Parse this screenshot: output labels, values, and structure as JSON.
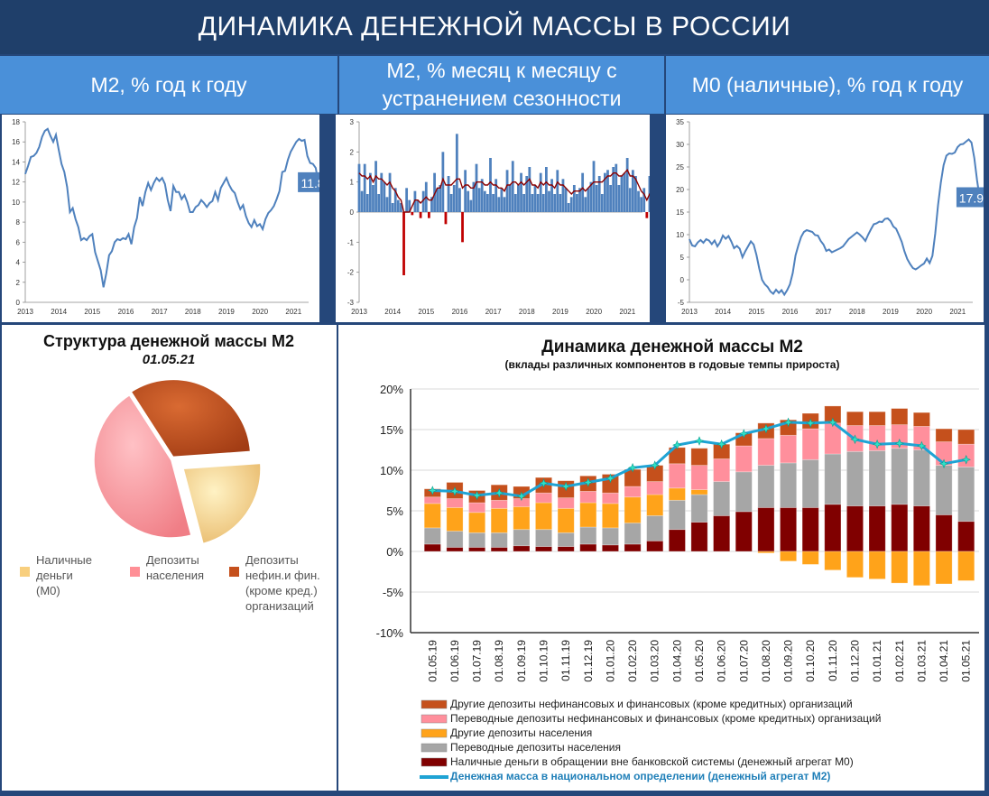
{
  "page": {
    "title": "ДИНАМИКА ДЕНЕЖНОЙ МАССЫ В РОССИИ"
  },
  "headers": {
    "h1": "М2, % год к году",
    "h2_line1": "М2, % месяц к месяцу с",
    "h2_line2": "устранением сезонности",
    "h3": "М0 (наличные), % год к году"
  },
  "colors": {
    "line_blue": "#4f81bd",
    "bar_blue": "#4f81bd",
    "bar_red": "#c00000",
    "ma_red": "#8b0000",
    "m2_line": "#1fa3d4",
    "m2_marker": "#2fe0c8",
    "cash": "#800000",
    "trans_house": "#a6a6a6",
    "other_house": "#ffa31a",
    "trans_corp": "#ff8f9c",
    "other_corp": "#c5501c"
  },
  "chart_data": [
    {
      "type": "line",
      "title": "М2, % год к году",
      "x_ticks": [
        "2013",
        "2014",
        "2015",
        "2016",
        "2017",
        "2018",
        "2019",
        "2020",
        "2021"
      ],
      "y_ticks": [
        "0",
        "2",
        "4",
        "6",
        "8",
        "10",
        "12",
        "14",
        "16",
        "18"
      ],
      "ylim": [
        0,
        18
      ],
      "x_start": 2013.0,
      "x_step": 0.0833,
      "values": [
        12.8,
        13.6,
        14.5,
        14.6,
        14.9,
        15.5,
        16.5,
        17.1,
        17.3,
        16.6,
        16.0,
        16.7,
        15.2,
        13.8,
        13.0,
        11.5,
        9.0,
        9.4,
        8.3,
        7.5,
        6.2,
        6.4,
        6.2,
        6.6,
        6.8,
        5.0,
        4.1,
        3.2,
        1.5,
        2.9,
        4.7,
        5.1,
        6.0,
        6.3,
        6.2,
        6.4,
        6.3,
        6.8,
        5.8,
        7.5,
        8.4,
        10.5,
        9.6,
        11.0,
        11.9,
        11.2,
        11.9,
        12.4,
        12.1,
        12.4,
        11.8,
        10.2,
        9.1,
        11.6,
        11.0,
        11.0,
        10.3,
        10.7,
        10.0,
        9.0,
        9.0,
        9.5,
        9.7,
        10.2,
        9.9,
        9.5,
        9.9,
        10.1,
        11.0,
        10.2,
        11.4,
        11.9,
        12.4,
        11.7,
        11.2,
        10.9,
        10.0,
        9.3,
        9.7,
        8.6,
        7.9,
        7.5,
        8.2,
        7.6,
        7.8,
        7.3,
        8.3,
        8.9,
        9.2,
        9.6,
        10.3,
        11.1,
        13.0,
        13.1,
        14.2,
        15.0,
        15.5,
        16.0,
        16.3,
        16.1,
        16.2,
        14.6,
        13.9,
        13.8,
        13.4,
        11.8,
        11.8
      ],
      "last_label": "11.8"
    },
    {
      "type": "bar",
      "title": "М2, % месяц к месяцу с устранением сезонности",
      "x_ticks": [
        "2013",
        "2014",
        "2015",
        "2016",
        "2017",
        "2018",
        "2019",
        "2020",
        "2021"
      ],
      "y_ticks": [
        "-3",
        "-2",
        "-1",
        "0",
        "1",
        "2",
        "3"
      ],
      "ylim": [
        -3,
        3
      ],
      "x_start": 2013.0,
      "x_step": 0.0833,
      "values": [
        1.6,
        0.7,
        1.6,
        0.6,
        1.3,
        0.9,
        1.7,
        0.6,
        1.3,
        1.0,
        0.5,
        1.3,
        0.3,
        0.8,
        0.4,
        0.3,
        -2.1,
        0.8,
        0.4,
        -0.1,
        0.7,
        0.4,
        -0.2,
        0.7,
        1.0,
        -0.2,
        0.5,
        1.3,
        0.8,
        0.9,
        2.0,
        -0.4,
        1.2,
        0.6,
        0.9,
        2.6,
        0.8,
        -1.0,
        1.4,
        0.7,
        0.4,
        1.0,
        1.6,
        0.8,
        1.1,
        0.7,
        0.6,
        1.8,
        0.6,
        1.1,
        0.5,
        0.8,
        0.5,
        1.4,
        0.9,
        1.7,
        0.6,
        0.9,
        1.3,
        0.6,
        1.2,
        1.5,
        0.6,
        0.9,
        0.6,
        1.3,
        0.6,
        1.5,
        0.7,
        1.1,
        0.6,
        1.4,
        0.6,
        1.1,
        0.8,
        0.3,
        0.5,
        0.9,
        0.6,
        0.8,
        1.3,
        0.5,
        0.8,
        1.0,
        1.7,
        0.9,
        1.2,
        0.6,
        1.3,
        1.4,
        0.9,
        1.5,
        1.6,
        0.9,
        1.2,
        1.3,
        1.8,
        0.8,
        1.4,
        1.2,
        0.7,
        0.5,
        0.8,
        -0.2,
        1.2,
        0.5,
        1.2
      ],
      "ma": [
        1.3,
        1.2,
        1.2,
        1.1,
        1.2,
        1.0,
        1.2,
        1.1,
        1.1,
        1.0,
        0.9,
        1.0,
        0.8,
        0.7,
        0.5,
        0.4,
        0.0,
        0.0,
        0.0,
        0.2,
        0.4,
        0.4,
        0.3,
        0.4,
        0.5,
        0.4,
        0.4,
        0.6,
        0.8,
        0.8,
        1.1,
        0.9,
        0.9,
        0.9,
        1.0,
        1.1,
        1.1,
        0.8,
        0.9,
        0.9,
        0.8,
        0.8,
        1.0,
        1.0,
        1.0,
        0.9,
        0.9,
        1.0,
        0.9,
        0.9,
        0.8,
        0.8,
        0.7,
        0.9,
        0.9,
        1.0,
        1.0,
        0.9,
        1.0,
        0.9,
        1.0,
        1.1,
        0.9,
        0.9,
        0.8,
        1.0,
        0.9,
        1.0,
        0.9,
        0.9,
        0.8,
        1.0,
        0.9,
        0.9,
        0.8,
        0.7,
        0.6,
        0.7,
        0.7,
        0.7,
        0.8,
        0.7,
        0.8,
        0.9,
        1.0,
        1.0,
        1.0,
        1.0,
        1.1,
        1.2,
        1.2,
        1.3,
        1.3,
        1.2,
        1.2,
        1.3,
        1.4,
        1.2,
        1.2,
        1.1,
        0.9,
        0.7,
        0.6,
        0.4,
        0.6,
        0.7,
        0.8
      ]
    },
    {
      "type": "line",
      "title": "М0 (наличные), % год к году",
      "x_ticks": [
        "2013",
        "2014",
        "2015",
        "2016",
        "2017",
        "2018",
        "2019",
        "2020",
        "2021"
      ],
      "y_ticks": [
        "-5",
        "0",
        "5",
        "10",
        "15",
        "20",
        "25",
        "30",
        "35"
      ],
      "ylim": [
        -5,
        35
      ],
      "x_start": 2013.0,
      "x_step": 0.0833,
      "values": [
        9.0,
        7.6,
        7.4,
        8.3,
        8.8,
        8.2,
        9.0,
        8.7,
        7.9,
        8.7,
        7.4,
        8.3,
        9.8,
        9.1,
        9.7,
        8.5,
        7.0,
        7.5,
        6.9,
        5.0,
        6.3,
        7.4,
        8.5,
        7.8,
        5.5,
        2.5,
        0.0,
        -1.0,
        -1.6,
        -2.6,
        -3.1,
        -2.2,
        -2.9,
        -2.3,
        -3.3,
        -2.3,
        -1.0,
        1.5,
        5.4,
        7.6,
        9.5,
        10.6,
        11.0,
        10.8,
        10.6,
        9.9,
        9.8,
        8.6,
        7.8,
        6.4,
        6.7,
        6.1,
        6.4,
        6.7,
        7.0,
        7.4,
        8.2,
        9.0,
        9.5,
        10.0,
        10.5,
        10.0,
        9.4,
        8.6,
        10.0,
        11.2,
        12.3,
        12.5,
        12.9,
        12.8,
        13.5,
        13.6,
        13.0,
        11.8,
        11.3,
        9.9,
        8.4,
        6.3,
        4.6,
        3.5,
        2.6,
        2.3,
        2.7,
        3.2,
        3.6,
        4.7,
        3.7,
        5.3,
        10.2,
        16.5,
        21.5,
        25.4,
        27.5,
        28.0,
        27.9,
        28.2,
        29.4,
        30.0,
        30.1,
        30.6,
        31.1,
        30.4,
        27.0,
        22.0,
        17.9
      ],
      "last_label": "17.9"
    },
    {
      "type": "pie",
      "title": "Структура денежной массы М2",
      "subtitle": "01.05.21",
      "slices": [
        {
          "name": "Наличные деньги (М0)",
          "value": 22
        },
        {
          "name": "Депозиты населения",
          "value": 45
        },
        {
          "name": "Депозиты нефин.и фин. (кроме кред.) организаций",
          "value": 33
        }
      ]
    },
    {
      "type": "bar",
      "title": "Динамика денежной массы М2",
      "subtitle": "(вклады различных компонентов в годовые темпы прироста)",
      "categories": [
        "01.05.19",
        "01.06.19",
        "01.07.19",
        "01.08.19",
        "01.09.19",
        "01.10.19",
        "01.11.19",
        "01.12.19",
        "01.01.20",
        "01.02.20",
        "01.03.20",
        "01.04.20",
        "01.05.20",
        "01.06.20",
        "01.07.20",
        "01.08.20",
        "01.09.20",
        "01.10.20",
        "01.11.20",
        "01.12.20",
        "01.01.21",
        "01.02.21",
        "01.03.21",
        "01.04.21",
        "01.05.21"
      ],
      "y_ticks": [
        "-10%",
        "-5%",
        "0%",
        "5%",
        "10%",
        "15%",
        "20%"
      ],
      "ylim": [
        -10,
        20
      ],
      "series": [
        {
          "name": "Другие депозиты нефинансовых и финансовых (кроме кредитных)  организаций",
          "values": [
            1.0,
            2.0,
            1.5,
            1.9,
            1.5,
            1.9,
            2.1,
            1.9,
            2.3,
            2.1,
            2.0,
            2.0,
            2.1,
            1.8,
            1.6,
            1.9,
            1.9,
            1.9,
            2.1,
            1.7,
            1.7,
            2.0,
            1.7,
            1.6,
            1.8
          ]
        },
        {
          "name": "Переводные депозиты нефинансовых и финансовых (кроме кредитных)  организаций",
          "values": [
            0.8,
            1.1,
            1.2,
            1.0,
            1.0,
            1.2,
            1.3,
            1.4,
            1.3,
            1.3,
            1.6,
            3.0,
            3.0,
            2.8,
            3.2,
            3.3,
            3.4,
            3.8,
            3.8,
            3.2,
            3.1,
            2.9,
            2.9,
            2.9,
            2.8
          ]
        },
        {
          "name": "Другие депозиты населения",
          "values": [
            3.0,
            2.9,
            2.5,
            3.0,
            2.8,
            3.3,
            3.0,
            3.0,
            3.0,
            3.2,
            2.6,
            1.5,
            0.6,
            0.0,
            0.0,
            -0.2,
            -1.2,
            -1.6,
            -2.3,
            -3.2,
            -3.4,
            -3.9,
            -4.2,
            -4.0,
            -3.6
          ]
        },
        {
          "name": "Переводные депозиты населения",
          "values": [
            2.0,
            2.0,
            1.8,
            1.8,
            2.0,
            2.1,
            1.7,
            2.1,
            2.1,
            2.6,
            3.1,
            3.6,
            3.4,
            4.2,
            4.9,
            5.2,
            5.5,
            5.9,
            6.2,
            6.7,
            6.8,
            6.9,
            6.9,
            6.1,
            6.7
          ]
        },
        {
          "name": "Наличные деньги в обращении вне банковской системы (денежный агрегат М0)",
          "values": [
            0.9,
            0.5,
            0.5,
            0.5,
            0.7,
            0.6,
            0.6,
            0.9,
            0.8,
            0.9,
            1.3,
            2.7,
            3.6,
            4.4,
            4.9,
            5.4,
            5.4,
            5.4,
            5.8,
            5.6,
            5.6,
            5.8,
            5.6,
            4.5,
            3.7
          ]
        },
        {
          "name": "Денежная масса в национальном  определении  (денежный агрегат  М2)",
          "values": [
            7.5,
            7.4,
            6.9,
            7.2,
            6.8,
            8.4,
            8.0,
            8.5,
            9.0,
            10.3,
            10.6,
            13.1,
            13.6,
            13.2,
            14.5,
            15.1,
            15.9,
            15.8,
            15.9,
            13.8,
            13.2,
            13.3,
            13.0,
            10.8,
            11.3
          ]
        }
      ]
    }
  ]
}
